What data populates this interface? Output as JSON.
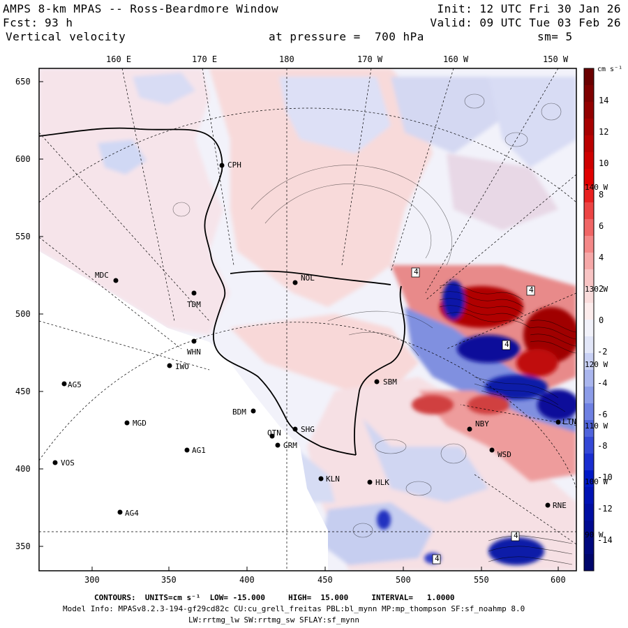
{
  "header": {
    "model_title": "AMPS 8-km MPAS -- Ross-Beardmore Window",
    "forecast_label": "Fcst:",
    "forecast_hours": "93 h",
    "field_name": "Vertical velocity",
    "init_time": "Init: 12 UTC Fri 30 Jan 26",
    "valid_time": "Valid: 09 UTC Tue 03 Feb 26",
    "pressure_level": "at pressure =  700 hPa",
    "smoothing": "sm= 5"
  },
  "axes": {
    "top_labels": [
      "160 E",
      "170 E",
      "180",
      "170 W",
      "160 W",
      "150 W"
    ],
    "left_labels": [
      "650",
      "600",
      "550",
      "500",
      "450",
      "400",
      "350"
    ],
    "bottom_labels": [
      "300",
      "350",
      "400",
      "450",
      "500",
      "550",
      "600"
    ],
    "right_labels": [
      "140 W",
      "130 W",
      "120 W",
      "110 W",
      "100 W",
      "90 W"
    ]
  },
  "colorbar": {
    "units": "cm s⁻¹",
    "tick_labels": [
      "14",
      "12",
      "10",
      "8",
      "6",
      "4",
      "2",
      "0",
      "-2",
      "-4",
      "-6",
      "-8",
      "-10",
      "-12",
      "-14"
    ]
  },
  "stations": [
    {
      "code": "CPH"
    },
    {
      "code": "NOL"
    },
    {
      "code": "MDC"
    },
    {
      "code": "TDM"
    },
    {
      "code": "WHN"
    },
    {
      "code": "IWO"
    },
    {
      "code": "AG5"
    },
    {
      "code": "BDM"
    },
    {
      "code": "SBM"
    },
    {
      "code": "MGD"
    },
    {
      "code": "SHG"
    },
    {
      "code": "OTN"
    },
    {
      "code": "GRM"
    },
    {
      "code": "AG1"
    },
    {
      "code": "NBY"
    },
    {
      "code": "WSD"
    },
    {
      "code": "VOS"
    },
    {
      "code": "KLN"
    },
    {
      "code": "HLK"
    },
    {
      "code": "AG4"
    },
    {
      "code": "RNE"
    },
    {
      "code": "LTN"
    }
  ],
  "contour_labels": [
    "4",
    "4",
    "4",
    "4",
    "4"
  ],
  "footer": {
    "contours_line": "CONTOURS:  UNITS=cm s⁻¹  LOW= -15.000     HIGH=  15.000     INTERVAL=   1.0000",
    "model_info": "Model Info: MPASv8.2.3-194-gf29cd82c CU:cu_grell_freitas PBL:bl_mynn MP:mp_thompson SF:sf_noahmp 8.0",
    "physics_line": "LW:rrtmg_lw SW:rrtmg_sw SFLAY:sf_mynn"
  },
  "colors": {
    "positive_strong": "#990000",
    "positive_mid": "#e06060",
    "positive_light": "#f8d8d8",
    "neutral": "#f2f2fa",
    "negative_light": "#d8dcf4",
    "negative_mid": "#5a70d8",
    "negative_strong": "#00007a"
  }
}
